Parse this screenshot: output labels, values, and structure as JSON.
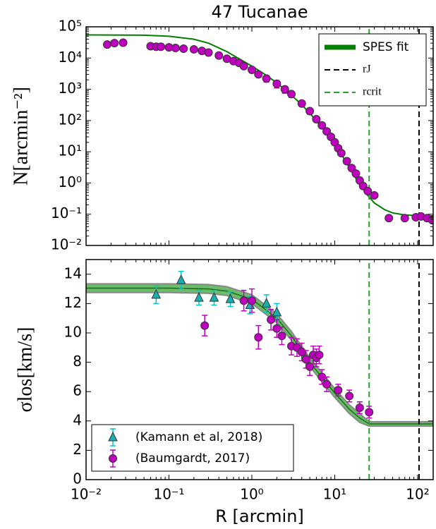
{
  "chart_data": [
    {
      "type": "scatter",
      "title": "47 Tucanae",
      "ylabel": "N[arcmin⁻²]",
      "xscale": "log",
      "yscale": "log",
      "xlim": [
        0.01,
        154
      ],
      "ylim": [
        0.01,
        100000
      ],
      "xticks": [
        0.01,
        0.1,
        1,
        10,
        100
      ],
      "yticks": [
        {
          "value": 0.01,
          "label": "10⁻²"
        },
        {
          "value": 0.1,
          "label": "10⁻¹"
        },
        {
          "value": 1,
          "label": "10⁰"
        },
        {
          "value": 10,
          "label": "10¹"
        },
        {
          "value": 100,
          "label": "10²"
        },
        {
          "value": 1000,
          "label": "10³"
        },
        {
          "value": 10000,
          "label": "10⁴"
        },
        {
          "value": 100000,
          "label": "10⁵"
        }
      ],
      "legend": "upper right",
      "series": [
        {
          "name": "SPES fit",
          "kind": "line",
          "color": "#007f00",
          "x": [
            0.01,
            0.05,
            0.1,
            0.2,
            0.3,
            0.5,
            0.7,
            1,
            1.5,
            2,
            3,
            4,
            5,
            7,
            10,
            13,
            16,
            20,
            25,
            30,
            40,
            50,
            70,
            100,
            130,
            154
          ],
          "values": [
            55000,
            54000,
            50000,
            40000,
            30000,
            16000,
            9500,
            5500,
            2800,
            1600,
            650,
            320,
            170,
            60,
            17,
            6,
            2.3,
            0.9,
            0.4,
            0.23,
            0.14,
            0.11,
            0.095,
            0.09,
            0.08,
            0.07
          ]
        },
        {
          "kind": "circle",
          "color": "#bf00bf",
          "x": [
            0.018,
            0.022,
            0.028,
            0.06,
            0.07,
            0.08,
            0.1,
            0.12,
            0.15,
            0.2,
            0.25,
            0.3,
            0.4,
            0.5,
            0.6,
            0.7,
            0.8,
            1.0,
            1.2,
            1.5,
            2.0,
            2.5,
            3,
            4,
            5,
            6,
            7,
            8,
            9,
            10,
            11,
            12,
            14,
            16,
            18,
            20,
            22,
            25,
            30,
            45,
            70,
            95,
            110,
            130,
            150
          ],
          "values": [
            27000,
            30000,
            31000,
            24000,
            23000,
            23000,
            22000,
            21000,
            20000,
            19000,
            17000,
            15000,
            12000,
            9500,
            8000,
            7000,
            5500,
            4200,
            3000,
            2200,
            1500,
            1000,
            700,
            350,
            200,
            110,
            70,
            45,
            30,
            20,
            13,
            9,
            5,
            3,
            2,
            1.2,
            0.8,
            0.55,
            0.4,
            0.075,
            0.075,
            0.08,
            0.085,
            0.075,
            0.065
          ],
          "yerr": [
            4000,
            5000,
            6000,
            3000,
            3000,
            3000,
            3000,
            3000,
            3000,
            3000,
            3000,
            3000,
            2000,
            1500,
            1200,
            1000,
            900,
            700,
            500,
            500,
            400,
            250,
            150,
            70,
            40,
            20,
            12,
            8,
            5,
            3,
            2,
            1.5,
            0.8,
            0.5,
            0.3,
            0.2,
            0.12,
            0.08,
            0.06,
            0.01,
            0.01,
            0.01,
            0.01,
            0.01,
            0.01
          ]
        }
      ],
      "vlines": [
        {
          "name": "rJ",
          "value": 104,
          "color": "#000000"
        },
        {
          "name": "rcrit",
          "value": 26,
          "color": "#2ca02c"
        }
      ]
    },
    {
      "type": "scatter",
      "xlabel": "R [arcmin]",
      "ylabel": "σlos[km/s]",
      "xscale": "log",
      "yscale": "linear",
      "xlim": [
        0.01,
        154
      ],
      "ylim": [
        0,
        15
      ],
      "xticks": [
        {
          "value": 0.01,
          "label": "10⁻²"
        },
        {
          "value": 0.1,
          "label": "10⁻¹"
        },
        {
          "value": 1,
          "label": "10⁰"
        },
        {
          "value": 10,
          "label": "10¹"
        },
        {
          "value": 100,
          "label": "10²"
        }
      ],
      "yticks": [
        0,
        2,
        4,
        6,
        8,
        10,
        12,
        14
      ],
      "legend": "lower left",
      "series": [
        {
          "kind": "band",
          "color": "#3aa53a",
          "x": [
            0.01,
            0.1,
            0.3,
            0.5,
            1,
            2,
            3,
            5,
            10,
            15,
            20,
            26,
            40,
            154
          ],
          "values": [
            13.05,
            13.05,
            13.0,
            12.85,
            12.3,
            11.0,
            9.8,
            8.0,
            5.9,
            4.8,
            4.2,
            3.8,
            3.8,
            3.8
          ],
          "lower": [
            12.75,
            12.75,
            12.7,
            12.55,
            12.0,
            10.7,
            9.5,
            7.7,
            5.6,
            4.5,
            3.9,
            3.65,
            3.65,
            3.65
          ],
          "upper": [
            13.35,
            13.35,
            13.3,
            13.15,
            12.6,
            11.3,
            10.1,
            8.3,
            6.2,
            5.1,
            4.5,
            3.95,
            3.95,
            3.95
          ]
        },
        {
          "name": "(Kamann et al, 2018)",
          "kind": "triangle",
          "color": "#17b0b0",
          "errcolor": "#00c8c8",
          "x": [
            0.07,
            0.14,
            0.23,
            0.35,
            0.55,
            0.95,
            1.5,
            2.0
          ],
          "values": [
            12.6,
            13.6,
            12.4,
            12.4,
            12.3,
            11.9,
            12.0,
            11.4
          ],
          "yerr": [
            0.6,
            0.6,
            0.5,
            0.5,
            0.5,
            0.6,
            0.6,
            0.6
          ]
        },
        {
          "name": "(Baumgardt, 2017)",
          "kind": "circle",
          "color": "#bf00bf",
          "errcolor": "#bf00bf",
          "x": [
            0.27,
            0.8,
            1.0,
            1.2,
            1.7,
            2.0,
            2.3,
            3,
            3.5,
            4,
            4.5,
            5,
            5.5,
            6,
            6.5,
            7,
            8,
            11,
            15,
            20,
            26
          ],
          "values": [
            10.5,
            12.2,
            12.2,
            9.7,
            10.9,
            10.3,
            9.8,
            9.1,
            9.0,
            8.7,
            8.2,
            7.7,
            8.5,
            8.3,
            8.5,
            7.0,
            6.5,
            6.1,
            5.7,
            4.9,
            4.6
          ],
          "yerr": [
            0.7,
            0.7,
            0.8,
            0.8,
            0.7,
            0.6,
            0.6,
            0.6,
            0.6,
            0.6,
            0.6,
            0.6,
            0.6,
            0.6,
            0.6,
            0.5,
            0.5,
            0.4,
            0.4,
            0.4,
            0.4
          ]
        }
      ],
      "vlines": [
        {
          "value": 104,
          "color": "#000000"
        },
        {
          "value": 26,
          "color": "#2ca02c"
        }
      ]
    }
  ]
}
